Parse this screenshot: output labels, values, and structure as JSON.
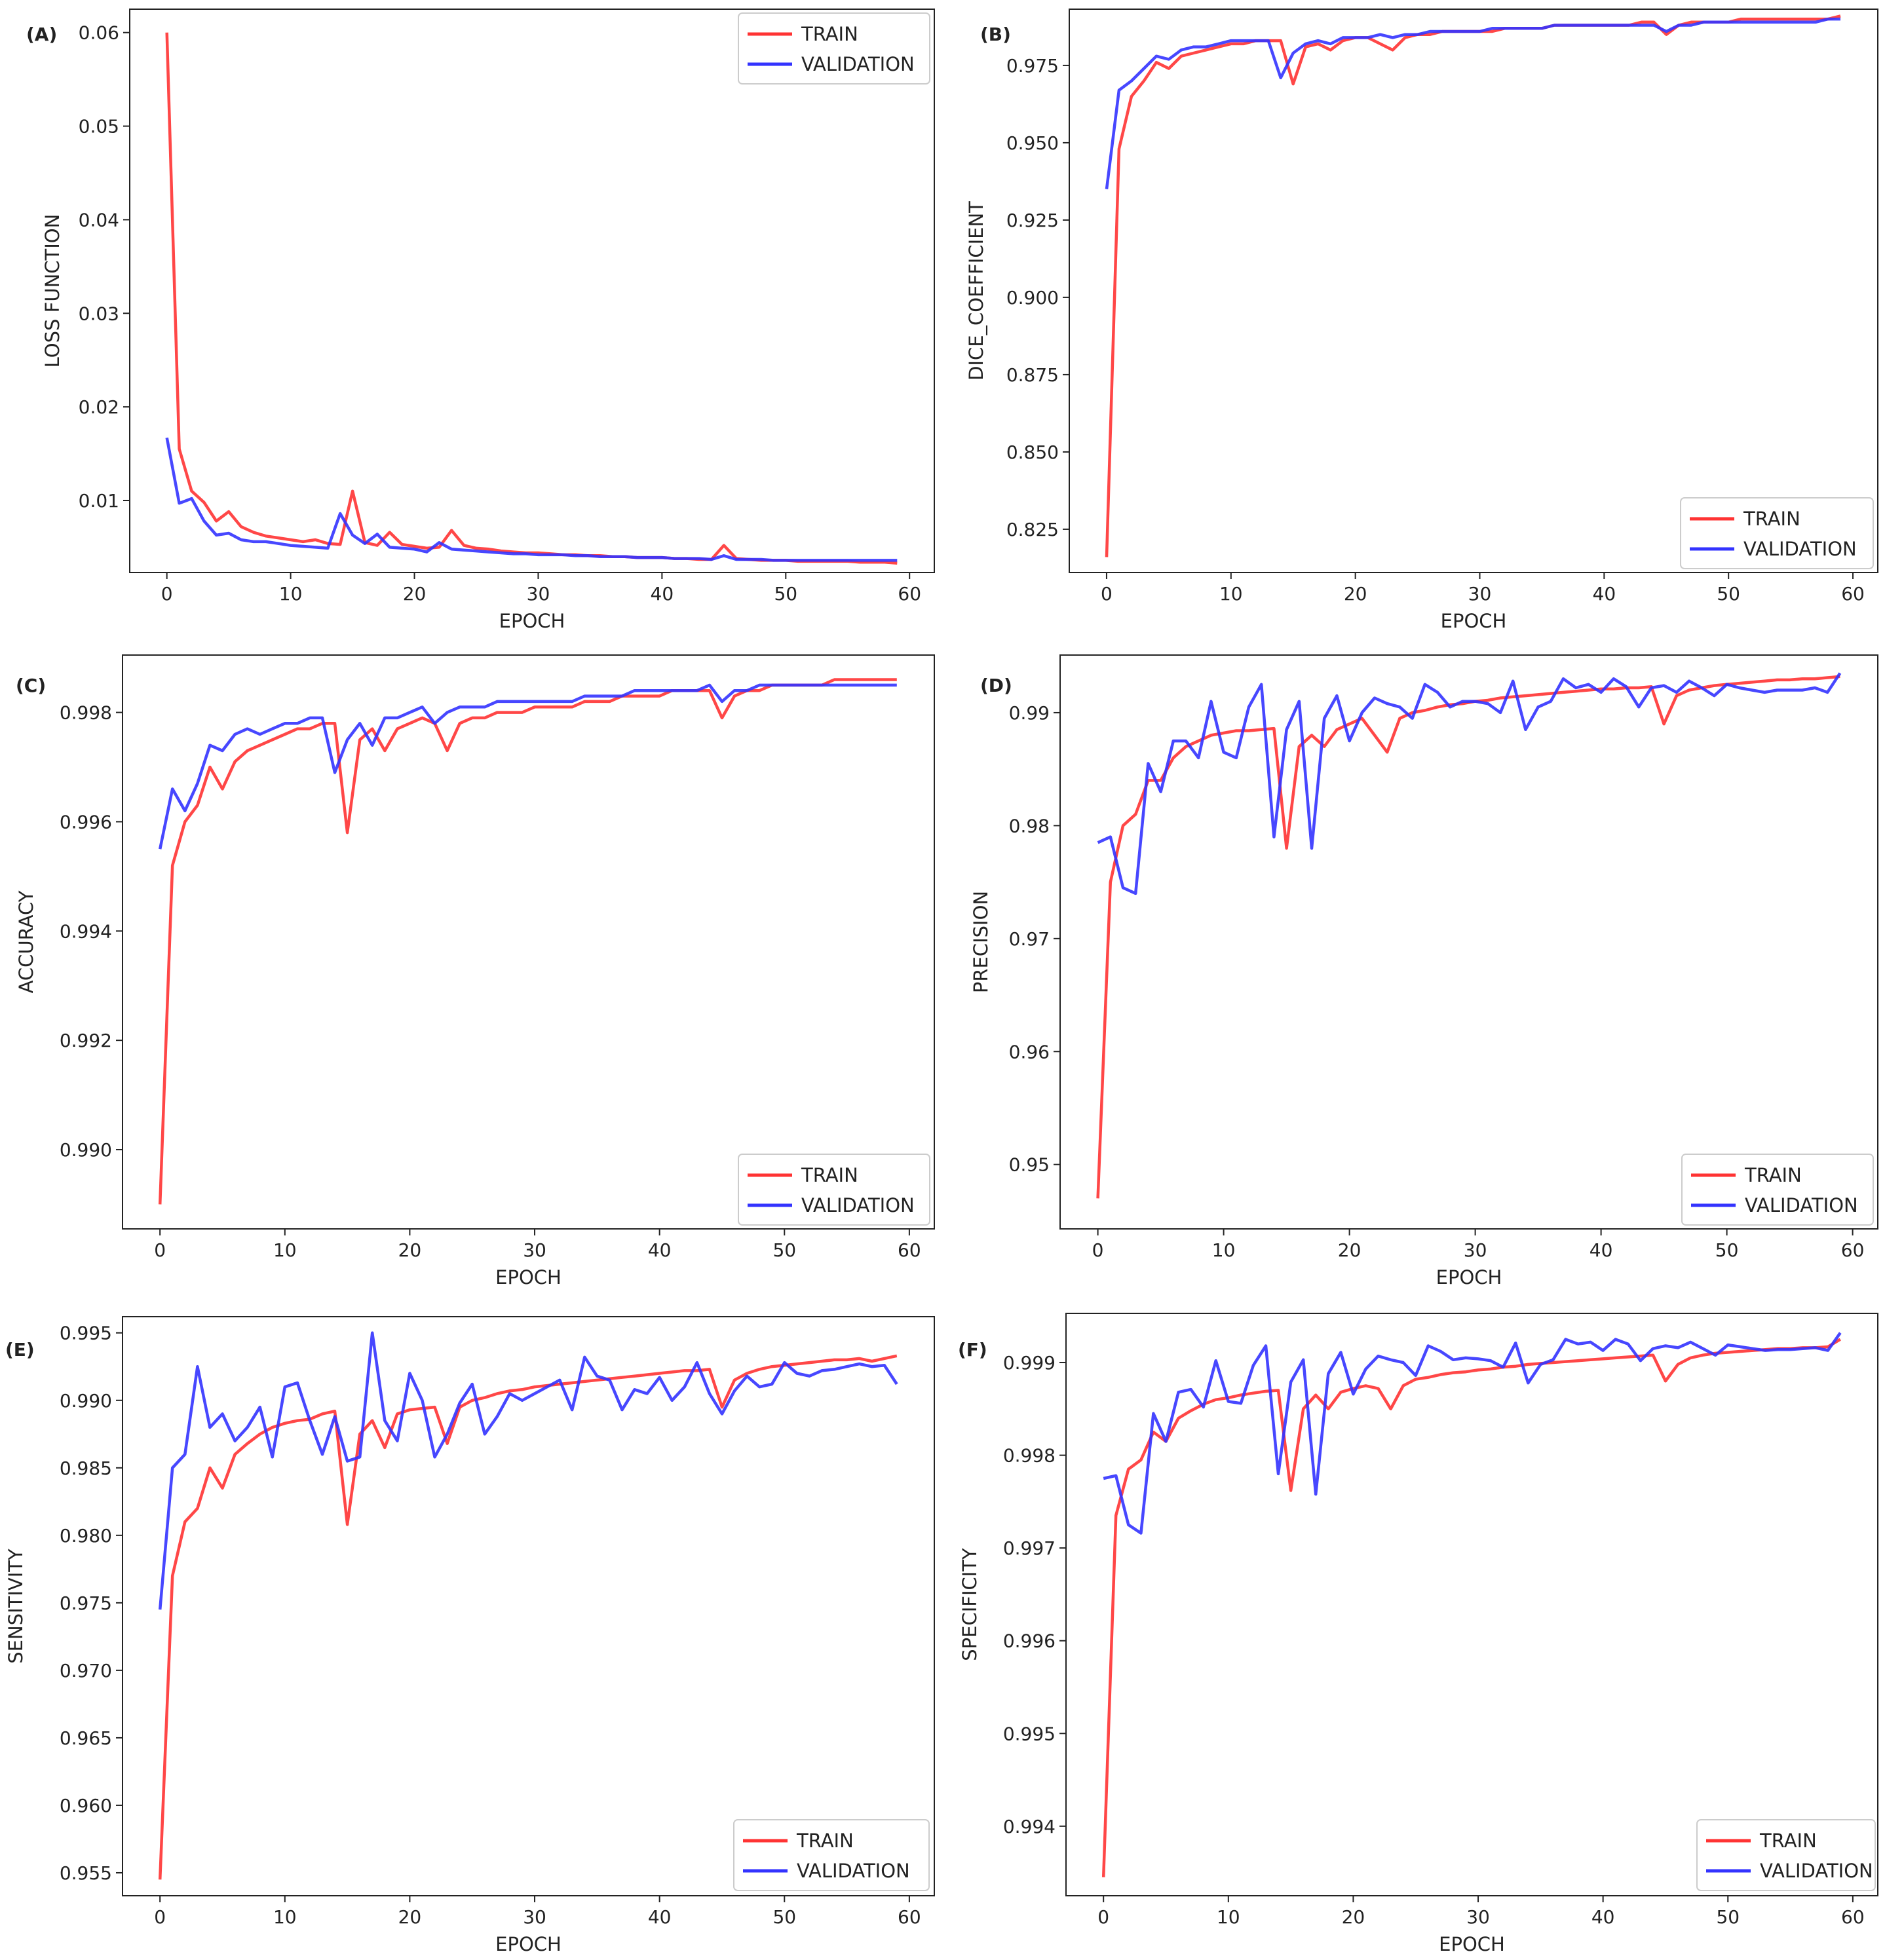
{
  "colors": {
    "train": "#ff3333",
    "validation": "#3333ff",
    "axis": "#222222"
  },
  "chart_data": [
    {
      "type": "line",
      "panel_label": "(A)",
      "title": "",
      "xlabel": "EPOCH",
      "ylabel": "LOSS FUNCTION",
      "xlim": [
        -3,
        62
      ],
      "ylim": [
        0.0023,
        0.0625
      ],
      "xticks": [
        "0",
        "10",
        "20",
        "30",
        "40",
        "50",
        "60"
      ],
      "yticks": [
        "0.01",
        "0.02",
        "0.03",
        "0.04",
        "0.05",
        "0.06"
      ],
      "legend": "top-right",
      "series": [
        {
          "name": "TRAIN",
          "color": "#ff3333",
          "values": [
            0.06,
            0.0155,
            0.011,
            0.0098,
            0.0078,
            0.0088,
            0.0072,
            0.0066,
            0.0062,
            0.006,
            0.0058,
            0.0056,
            0.0058,
            0.0054,
            0.0053,
            0.011,
            0.0055,
            0.0052,
            0.0066,
            0.0053,
            0.0051,
            0.0049,
            0.005,
            0.0068,
            0.0052,
            0.0049,
            0.0048,
            0.0046,
            0.0045,
            0.0044,
            0.0044,
            0.0043,
            0.0042,
            0.0042,
            0.0041,
            0.0041,
            0.004,
            0.004,
            0.0039,
            0.0039,
            0.0039,
            0.0038,
            0.0038,
            0.0037,
            0.0037,
            0.0052,
            0.0038,
            0.0037,
            0.0036,
            0.0036,
            0.0036,
            0.0035,
            0.0035,
            0.0035,
            0.0035,
            0.0035,
            0.0034,
            0.0034,
            0.0034,
            0.0033
          ]
        },
        {
          "name": "VALIDATION",
          "color": "#3333ff",
          "values": [
            0.0167,
            0.0097,
            0.0102,
            0.0078,
            0.0063,
            0.0065,
            0.0058,
            0.0056,
            0.0056,
            0.0054,
            0.0052,
            0.0051,
            0.005,
            0.0049,
            0.0086,
            0.0063,
            0.0054,
            0.0064,
            0.005,
            0.0049,
            0.0048,
            0.0045,
            0.0055,
            0.0048,
            0.0047,
            0.0046,
            0.0045,
            0.0044,
            0.0043,
            0.0043,
            0.0042,
            0.0042,
            0.0042,
            0.0041,
            0.0041,
            0.004,
            0.004,
            0.004,
            0.0039,
            0.0039,
            0.0039,
            0.0038,
            0.0038,
            0.0038,
            0.0037,
            0.0041,
            0.0037,
            0.0037,
            0.0037,
            0.0036,
            0.0036,
            0.0036,
            0.0036,
            0.0036,
            0.0036,
            0.0036,
            0.0036,
            0.0036,
            0.0036,
            0.0036
          ]
        }
      ]
    },
    {
      "type": "line",
      "panel_label": "(B)",
      "title": "",
      "xlabel": "EPOCH",
      "ylabel": "DICE_COEFFICIENT",
      "xlim": [
        -3,
        62
      ],
      "ylim": [
        0.811,
        0.9932
      ],
      "xticks": [
        "0",
        "10",
        "20",
        "30",
        "40",
        "50",
        "60"
      ],
      "yticks": [
        "0.825",
        "0.850",
        "0.875",
        "0.900",
        "0.925",
        "0.950",
        "0.975"
      ],
      "legend": "bottom-right",
      "series": [
        {
          "name": "TRAIN",
          "color": "#ff3333",
          "values": [
            0.816,
            0.948,
            0.965,
            0.97,
            0.976,
            0.974,
            0.978,
            0.979,
            0.98,
            0.981,
            0.982,
            0.982,
            0.983,
            0.983,
            0.983,
            0.969,
            0.981,
            0.982,
            0.98,
            0.983,
            0.984,
            0.984,
            0.982,
            0.98,
            0.984,
            0.985,
            0.985,
            0.986,
            0.986,
            0.986,
            0.986,
            0.986,
            0.987,
            0.987,
            0.987,
            0.987,
            0.988,
            0.988,
            0.988,
            0.988,
            0.988,
            0.988,
            0.988,
            0.989,
            0.989,
            0.985,
            0.988,
            0.989,
            0.989,
            0.989,
            0.989,
            0.99,
            0.99,
            0.99,
            0.99,
            0.99,
            0.99,
            0.99,
            0.99,
            0.991
          ]
        },
        {
          "name": "VALIDATION",
          "color": "#3333ff",
          "values": [
            0.935,
            0.967,
            0.97,
            0.974,
            0.978,
            0.977,
            0.98,
            0.981,
            0.981,
            0.982,
            0.983,
            0.983,
            0.983,
            0.983,
            0.971,
            0.979,
            0.982,
            0.983,
            0.982,
            0.984,
            0.984,
            0.984,
            0.985,
            0.984,
            0.985,
            0.985,
            0.986,
            0.986,
            0.986,
            0.986,
            0.986,
            0.987,
            0.987,
            0.987,
            0.987,
            0.987,
            0.988,
            0.988,
            0.988,
            0.988,
            0.988,
            0.988,
            0.988,
            0.988,
            0.988,
            0.986,
            0.988,
            0.988,
            0.989,
            0.989,
            0.989,
            0.989,
            0.989,
            0.989,
            0.989,
            0.989,
            0.989,
            0.989,
            0.99,
            0.99
          ]
        }
      ]
    },
    {
      "type": "line",
      "panel_label": "(C)",
      "title": "",
      "xlabel": "EPOCH",
      "ylabel": "ACCURACY",
      "xlim": [
        -3,
        62
      ],
      "ylim": [
        0.98855,
        0.99905
      ],
      "xticks": [
        "0",
        "10",
        "20",
        "30",
        "40",
        "50",
        "60"
      ],
      "yticks": [
        "0.990",
        "0.992",
        "0.994",
        "0.996",
        "0.998"
      ],
      "legend": "bottom-right",
      "series": [
        {
          "name": "TRAIN",
          "color": "#ff3333",
          "values": [
            0.989,
            0.9952,
            0.996,
            0.9963,
            0.997,
            0.9966,
            0.9971,
            0.9973,
            0.9974,
            0.9975,
            0.9976,
            0.9977,
            0.9977,
            0.9978,
            0.9978,
            0.9958,
            0.9975,
            0.9977,
            0.9973,
            0.9977,
            0.9978,
            0.9979,
            0.9978,
            0.9973,
            0.9978,
            0.9979,
            0.9979,
            0.998,
            0.998,
            0.998,
            0.9981,
            0.9981,
            0.9981,
            0.9981,
            0.9982,
            0.9982,
            0.9982,
            0.9983,
            0.9983,
            0.9983,
            0.9983,
            0.9984,
            0.9984,
            0.9984,
            0.9984,
            0.9979,
            0.9983,
            0.9984,
            0.9984,
            0.9985,
            0.9985,
            0.9985,
            0.9985,
            0.9985,
            0.9986,
            0.9986,
            0.9986,
            0.9986,
            0.9986,
            0.9986
          ]
        },
        {
          "name": "VALIDATION",
          "color": "#3333ff",
          "values": [
            0.9955,
            0.9966,
            0.9962,
            0.9967,
            0.9974,
            0.9973,
            0.9976,
            0.9977,
            0.9976,
            0.9977,
            0.9978,
            0.9978,
            0.9979,
            0.9979,
            0.9969,
            0.9975,
            0.9978,
            0.9974,
            0.9979,
            0.9979,
            0.998,
            0.9981,
            0.9978,
            0.998,
            0.9981,
            0.9981,
            0.9981,
            0.9982,
            0.9982,
            0.9982,
            0.9982,
            0.9982,
            0.9982,
            0.9982,
            0.9983,
            0.9983,
            0.9983,
            0.9983,
            0.9984,
            0.9984,
            0.9984,
            0.9984,
            0.9984,
            0.9984,
            0.9985,
            0.9982,
            0.9984,
            0.9984,
            0.9985,
            0.9985,
            0.9985,
            0.9985,
            0.9985,
            0.9985,
            0.9985,
            0.9985,
            0.9985,
            0.9985,
            0.9985,
            0.9985
          ]
        }
      ]
    },
    {
      "type": "line",
      "panel_label": "(D)",
      "title": "",
      "xlabel": "EPOCH",
      "ylabel": "PRECISION",
      "xlim": [
        -3,
        62
      ],
      "ylim": [
        0.9443,
        0.9951
      ],
      "xticks": [
        "0",
        "10",
        "20",
        "30",
        "40",
        "50",
        "60"
      ],
      "yticks": [
        "0.95",
        "0.96",
        "0.97",
        "0.98",
        "0.99"
      ],
      "legend": "bottom-right",
      "series": [
        {
          "name": "TRAIN",
          "color": "#ff3333",
          "values": [
            0.947,
            0.975,
            0.98,
            0.981,
            0.984,
            0.984,
            0.986,
            0.987,
            0.9875,
            0.988,
            0.9882,
            0.9884,
            0.9884,
            0.9885,
            0.9886,
            0.978,
            0.987,
            0.988,
            0.987,
            0.9885,
            0.989,
            0.9895,
            0.988,
            0.9865,
            0.9895,
            0.99,
            0.9902,
            0.9905,
            0.9907,
            0.9908,
            0.991,
            0.9911,
            0.9913,
            0.9914,
            0.9915,
            0.9916,
            0.9917,
            0.9918,
            0.9919,
            0.992,
            0.9921,
            0.9921,
            0.9922,
            0.9922,
            0.9923,
            0.989,
            0.9915,
            0.992,
            0.9922,
            0.9924,
            0.9925,
            0.9926,
            0.9927,
            0.9928,
            0.9929,
            0.9929,
            0.993,
            0.993,
            0.9931,
            0.9932
          ]
        },
        {
          "name": "VALIDATION",
          "color": "#3333ff",
          "values": [
            0.9785,
            0.979,
            0.9745,
            0.974,
            0.9855,
            0.983,
            0.9875,
            0.9875,
            0.986,
            0.991,
            0.9865,
            0.986,
            0.9905,
            0.9925,
            0.979,
            0.9885,
            0.991,
            0.978,
            0.9895,
            0.9915,
            0.9875,
            0.99,
            0.9913,
            0.9908,
            0.9905,
            0.9895,
            0.9925,
            0.9918,
            0.9905,
            0.991,
            0.991,
            0.9908,
            0.99,
            0.9928,
            0.9885,
            0.9905,
            0.991,
            0.993,
            0.9922,
            0.9925,
            0.9918,
            0.993,
            0.9923,
            0.9905,
            0.9922,
            0.9924,
            0.9918,
            0.9928,
            0.9922,
            0.9915,
            0.9925,
            0.9922,
            0.992,
            0.9918,
            0.992,
            0.992,
            0.992,
            0.9922,
            0.9918,
            0.9935
          ]
        }
      ]
    },
    {
      "type": "line",
      "panel_label": "(E)",
      "title": "",
      "xlabel": "EPOCH",
      "ylabel": "SENSITIVITY",
      "xlim": [
        -3,
        62
      ],
      "ylim": [
        0.9533,
        0.9962
      ],
      "xticks": [
        "0",
        "10",
        "20",
        "30",
        "40",
        "50",
        "60"
      ],
      "yticks": [
        "0.955",
        "0.960",
        "0.965",
        "0.970",
        "0.975",
        "0.980",
        "0.985",
        "0.990",
        "0.995"
      ],
      "legend": "bottom-right",
      "series": [
        {
          "name": "TRAIN",
          "color": "#ff3333",
          "values": [
            0.9545,
            0.977,
            0.981,
            0.982,
            0.985,
            0.9835,
            0.986,
            0.9868,
            0.9875,
            0.988,
            0.9883,
            0.9885,
            0.9886,
            0.989,
            0.9892,
            0.9808,
            0.9875,
            0.9885,
            0.9865,
            0.989,
            0.9893,
            0.9894,
            0.9895,
            0.9868,
            0.9895,
            0.99,
            0.9902,
            0.9905,
            0.9907,
            0.9908,
            0.991,
            0.9911,
            0.9912,
            0.9913,
            0.9914,
            0.9915,
            0.9916,
            0.9917,
            0.9918,
            0.9919,
            0.992,
            0.9921,
            0.9922,
            0.9922,
            0.9923,
            0.9895,
            0.9915,
            0.992,
            0.9923,
            0.9925,
            0.9926,
            0.9927,
            0.9928,
            0.9929,
            0.993,
            0.993,
            0.9931,
            0.9929,
            0.9931,
            0.9933
          ]
        },
        {
          "name": "VALIDATION",
          "color": "#3333ff",
          "values": [
            0.9745,
            0.985,
            0.986,
            0.9925,
            0.988,
            0.989,
            0.987,
            0.988,
            0.9895,
            0.9858,
            0.991,
            0.9913,
            0.9885,
            0.986,
            0.9888,
            0.9855,
            0.9858,
            0.995,
            0.9885,
            0.987,
            0.992,
            0.99,
            0.9858,
            0.9875,
            0.9898,
            0.9912,
            0.9875,
            0.9888,
            0.9905,
            0.99,
            0.9905,
            0.991,
            0.9915,
            0.9893,
            0.9932,
            0.9918,
            0.9915,
            0.9893,
            0.9908,
            0.9905,
            0.9917,
            0.99,
            0.991,
            0.9928,
            0.9905,
            0.989,
            0.9907,
            0.9918,
            0.991,
            0.9912,
            0.9928,
            0.992,
            0.9918,
            0.9922,
            0.9923,
            0.9925,
            0.9927,
            0.9925,
            0.9926,
            0.9912
          ]
        }
      ]
    },
    {
      "type": "line",
      "panel_label": "(F)",
      "title": "",
      "xlabel": "EPOCH",
      "ylabel": "SPECIFICITY",
      "xlim": [
        -3,
        62
      ],
      "ylim": [
        0.99325,
        0.99953
      ],
      "xticks": [
        "0",
        "10",
        "20",
        "30",
        "40",
        "50",
        "60"
      ],
      "yticks": [
        "0.994",
        "0.995",
        "0.996",
        "0.997",
        "0.998",
        "0.999"
      ],
      "legend": "bottom-right",
      "series": [
        {
          "name": "TRAIN",
          "color": "#ff3333",
          "values": [
            0.99345,
            0.99735,
            0.99785,
            0.99795,
            0.99825,
            0.99815,
            0.9984,
            0.99848,
            0.99855,
            0.9986,
            0.99862,
            0.99865,
            0.99867,
            0.99869,
            0.9987,
            0.99762,
            0.9985,
            0.99865,
            0.9985,
            0.99868,
            0.99872,
            0.99875,
            0.99872,
            0.9985,
            0.99875,
            0.99882,
            0.99884,
            0.99887,
            0.99889,
            0.9989,
            0.99892,
            0.99893,
            0.99895,
            0.99896,
            0.99898,
            0.99899,
            0.999,
            0.99901,
            0.99902,
            0.99903,
            0.99904,
            0.99905,
            0.99906,
            0.99907,
            0.99908,
            0.9988,
            0.99898,
            0.99905,
            0.99908,
            0.9991,
            0.99911,
            0.99912,
            0.99913,
            0.99914,
            0.99915,
            0.99915,
            0.99916,
            0.99916,
            0.99917,
            0.99925
          ]
        },
        {
          "name": "VALIDATION",
          "color": "#3333ff",
          "values": [
            0.99775,
            0.99778,
            0.99725,
            0.99716,
            0.99845,
            0.99815,
            0.99868,
            0.99871,
            0.99852,
            0.99902,
            0.99858,
            0.99856,
            0.99897,
            0.99918,
            0.9978,
            0.99879,
            0.99903,
            0.99758,
            0.99888,
            0.99911,
            0.99866,
            0.99893,
            0.99907,
            0.99903,
            0.999,
            0.99886,
            0.99918,
            0.99912,
            0.99903,
            0.99905,
            0.99904,
            0.99902,
            0.99895,
            0.99921,
            0.99878,
            0.99898,
            0.99903,
            0.99925,
            0.9992,
            0.99922,
            0.99913,
            0.99925,
            0.9992,
            0.99902,
            0.99915,
            0.99918,
            0.99916,
            0.99922,
            0.99915,
            0.99908,
            0.99919,
            0.99917,
            0.99915,
            0.99913,
            0.99914,
            0.99914,
            0.99915,
            0.99916,
            0.99913,
            0.99932
          ]
        }
      ]
    }
  ]
}
